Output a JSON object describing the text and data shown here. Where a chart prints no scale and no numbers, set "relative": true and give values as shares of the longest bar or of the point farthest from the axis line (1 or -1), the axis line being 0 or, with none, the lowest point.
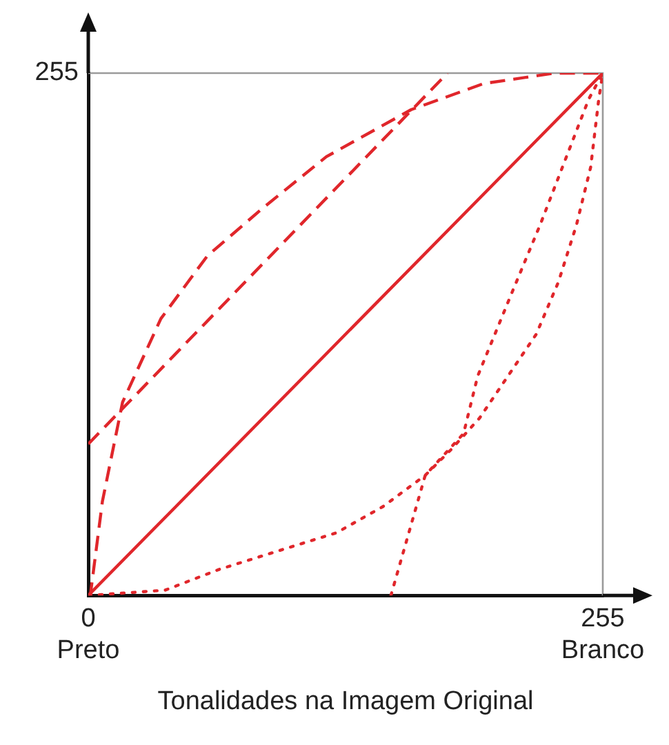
{
  "chart_data": {
    "type": "line",
    "xlabel": "Tonalidades na Imagem Original",
    "xlim": [
      0,
      255
    ],
    "relative": true,
    "xticks": [
      {
        "value": 0,
        "label": "0\nPreto"
      },
      {
        "value": 255,
        "label": "255\nBranco"
      }
    ],
    "annotations": [
      "255"
    ],
    "legend": false,
    "marker": "none",
    "series": [
      {
        "color": "#e0262b",
        "line_style": "solid",
        "x": [
          0,
          255
        ],
        "values": [
          0,
          1
        ]
      },
      {
        "color": "#e0262b",
        "line_style": "dashed",
        "x": [
          0,
          178
        ],
        "values": [
          0.29,
          1
        ]
      },
      {
        "color": "#e0262b",
        "line_style": "dashed",
        "x": [
          0,
          1,
          7,
          17,
          36,
          59,
          86,
          118,
          160,
          196,
          231,
          255
        ],
        "values": [
          0,
          0,
          0.18,
          0.37,
          0.53,
          0.65,
          0.74,
          0.84,
          0.93,
          0.98,
          1,
          1
        ]
      },
      {
        "color": "#e0262b",
        "line_style": "dotted",
        "x": [
          0,
          38,
          65,
          98,
          123,
          146,
          167,
          180,
          194,
          208,
          222,
          233,
          242,
          249,
          253,
          255
        ],
        "values": [
          0,
          0.01,
          0.05,
          0.09,
          0.12,
          0.17,
          0.23,
          0.28,
          0.34,
          0.42,
          0.5,
          0.6,
          0.71,
          0.82,
          0.95,
          1
        ]
      },
      {
        "color": "#e0262b",
        "line_style": "dotted",
        "x": [
          150,
          167,
          186,
          193,
          210,
          224,
          238,
          248,
          255
        ],
        "values": [
          0,
          0.23,
          0.31,
          0.42,
          0.58,
          0.71,
          0.85,
          0.95,
          1
        ]
      }
    ]
  }
}
